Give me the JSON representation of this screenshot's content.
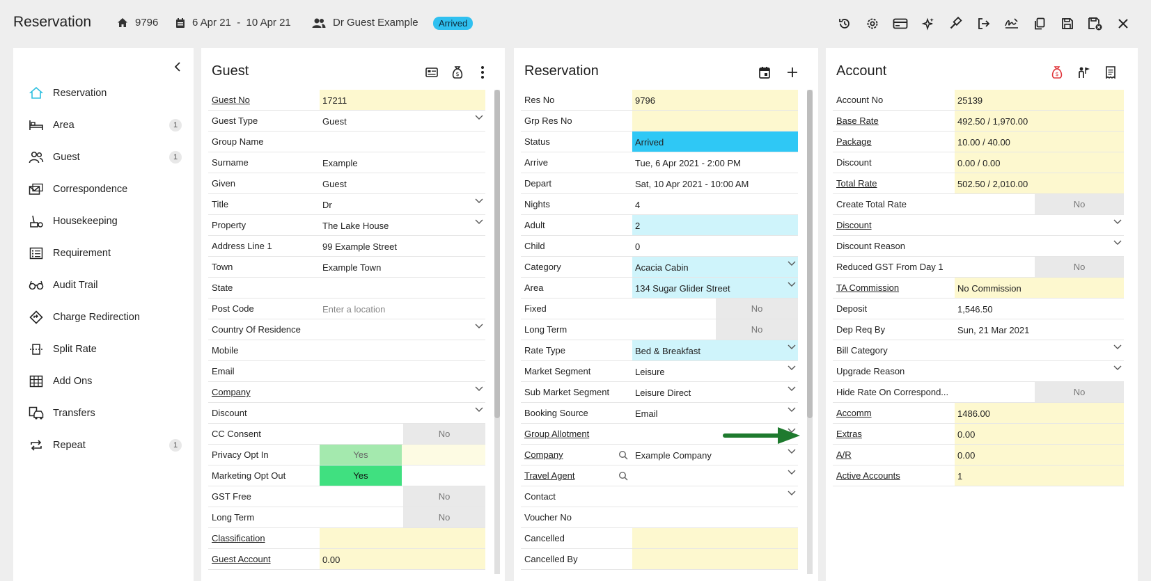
{
  "header": {
    "title": "Reservation",
    "res_no": "9796",
    "dates": "6 Apr 21  -  10 Apr 21",
    "guest": "Dr Guest Example",
    "status_badge": "Arrived"
  },
  "toolbar": {
    "icons": [
      "history-icon",
      "settings-gear-icon",
      "credit-card-icon",
      "magic-wand-icon",
      "gavel-icon",
      "check-out-icon",
      "signature-icon",
      "copy-icon",
      "save-icon",
      "save-close-icon",
      "close-icon"
    ]
  },
  "sidebar": {
    "items": [
      {
        "label": "Reservation",
        "icon": "home-icon",
        "count": ""
      },
      {
        "label": "Area",
        "icon": "bed-icon",
        "count": "1"
      },
      {
        "label": "Guest",
        "icon": "users-icon",
        "count": "1"
      },
      {
        "label": "Correspondence",
        "icon": "mail-icon",
        "count": ""
      },
      {
        "label": "Housekeeping",
        "icon": "housekeeping-icon",
        "count": ""
      },
      {
        "label": "Requirement",
        "icon": "list-icon",
        "count": ""
      },
      {
        "label": "Audit Trail",
        "icon": "glasses-icon",
        "count": ""
      },
      {
        "label": "Charge Redirection",
        "icon": "diamond-arrow-icon",
        "count": ""
      },
      {
        "label": "Split Rate",
        "icon": "split-icon",
        "count": ""
      },
      {
        "label": "Add Ons",
        "icon": "grid-icon",
        "count": ""
      },
      {
        "label": "Transfers",
        "icon": "car-icon",
        "count": ""
      },
      {
        "label": "Repeat",
        "icon": "repeat-icon",
        "count": "1"
      }
    ]
  },
  "guest_panel": {
    "title": "Guest",
    "rows": [
      {
        "label": "Guest No",
        "value": "17211",
        "link": true,
        "style": "yellow"
      },
      {
        "label": "Guest Type",
        "value": "Guest",
        "dropdown": true
      },
      {
        "label": "Group Name",
        "value": ""
      },
      {
        "label": "Surname",
        "value": "Example"
      },
      {
        "label": "Given",
        "value": "Guest"
      },
      {
        "label": "Title",
        "value": "Dr",
        "dropdown": true
      },
      {
        "label": "Property",
        "value": "The Lake House",
        "dropdown": true
      },
      {
        "label": "Address Line 1",
        "value": "99 Example Street"
      },
      {
        "label": "Town",
        "value": "Example Town"
      },
      {
        "label": "State",
        "value": ""
      },
      {
        "label": "Post Code",
        "value": "",
        "placeholder": "Enter a location"
      },
      {
        "label": "Country Of Residence",
        "value": "",
        "dropdown": true
      },
      {
        "label": "Mobile",
        "value": ""
      },
      {
        "label": "Email",
        "value": ""
      },
      {
        "label": "Company",
        "value": "",
        "link": true,
        "dropdown": true
      },
      {
        "label": "Discount",
        "value": "",
        "dropdown": true
      },
      {
        "label": "CC Consent",
        "toggle": "No"
      },
      {
        "label": "Privacy Opt In",
        "toggle": "Yes",
        "toggle_style": "lightgreen"
      },
      {
        "label": "Marketing Opt Out",
        "toggle": "Yes",
        "toggle_style": "green"
      },
      {
        "label": "GST Free",
        "toggle": "No"
      },
      {
        "label": "Long Term",
        "toggle": "No"
      },
      {
        "label": "Classification",
        "value": "",
        "link": true,
        "style": "yellow"
      },
      {
        "label": "Guest Account",
        "value": "0.00",
        "link": true,
        "style": "yellow"
      }
    ]
  },
  "reservation_panel": {
    "title": "Reservation",
    "rows": [
      {
        "label": "Res No",
        "value": "9796",
        "style": "yellow"
      },
      {
        "label": "Grp Res No",
        "value": "",
        "style": "yellow"
      },
      {
        "label": "Status",
        "value": "Arrived",
        "style": "blue"
      },
      {
        "label": "Arrive",
        "value": "Tue, 6 Apr 2021 - 2:00 PM"
      },
      {
        "label": "Depart",
        "value": "Sat, 10 Apr 2021 - 10:00 AM"
      },
      {
        "label": "Nights",
        "value": "4"
      },
      {
        "label": "Adult",
        "value": "2",
        "style": "lightblue"
      },
      {
        "label": "Child",
        "value": "0"
      },
      {
        "label": "Category",
        "value": "Acacia Cabin",
        "style": "lightblue",
        "dropdown": true
      },
      {
        "label": "Area",
        "value": "134 Sugar Glider Street",
        "style": "lightblue",
        "dropdown": true
      },
      {
        "label": "Fixed",
        "toggle": "No"
      },
      {
        "label": "Long Term",
        "toggle": "No"
      },
      {
        "label": "Rate Type",
        "value": "Bed & Breakfast",
        "style": "lightblue",
        "dropdown": true
      },
      {
        "label": "Market Segment",
        "value": "Leisure",
        "dropdown": true
      },
      {
        "label": "Sub Market Segment",
        "value": "Leisure Direct",
        "dropdown": true
      },
      {
        "label": "Booking Source",
        "value": "Email",
        "dropdown": true
      },
      {
        "label": "Group Allotment",
        "value": "",
        "link": true,
        "dropdown": true
      },
      {
        "label": "Company",
        "value": "Example Company",
        "link": true,
        "search": true,
        "dropdown": true
      },
      {
        "label": "Travel Agent",
        "value": "",
        "link": true,
        "search": true,
        "dropdown": true
      },
      {
        "label": "Contact",
        "value": "",
        "dropdown": true
      },
      {
        "label": "Voucher No",
        "value": ""
      },
      {
        "label": "Cancelled",
        "value": "",
        "style": "yellow"
      },
      {
        "label": "Cancelled By",
        "value": "",
        "style": "yellow"
      }
    ]
  },
  "account_panel": {
    "title": "Account",
    "rows": [
      {
        "label": "Account No",
        "value": "25139",
        "style": "yellow"
      },
      {
        "label": "Base Rate",
        "value": "492.50 / 1,970.00",
        "link": true,
        "style": "yellow"
      },
      {
        "label": "Package",
        "value": "10.00 / 40.00",
        "link": true,
        "style": "yellow"
      },
      {
        "label": "Discount",
        "value": "0.00 / 0.00",
        "style": "yellow"
      },
      {
        "label": "Total Rate",
        "value": "502.50 / 2,010.00",
        "link": true,
        "style": "yellow"
      },
      {
        "label": "Create Total Rate",
        "toggle": "No"
      },
      {
        "label": "Discount",
        "value": "",
        "link": true,
        "dropdown": true
      },
      {
        "label": "Discount Reason",
        "value": "",
        "dropdown": true
      },
      {
        "label": "Reduced GST From Day 1",
        "toggle": "No"
      },
      {
        "label": "TA Commission",
        "value": "No Commission",
        "link": true,
        "style": "yellow"
      },
      {
        "label": "Deposit",
        "value": "1,546.50"
      },
      {
        "label": "Dep Req By",
        "value": "Sun, 21 Mar 2021"
      },
      {
        "label": "Bill Category",
        "value": "",
        "dropdown": true
      },
      {
        "label": "Upgrade Reason",
        "value": "",
        "dropdown": true
      },
      {
        "label": "Hide Rate On Correspond...",
        "toggle": "No"
      },
      {
        "label": "Accomm",
        "value": "1486.00",
        "link": true,
        "style": "yellow"
      },
      {
        "label": "Extras",
        "value": "0.00",
        "link": true,
        "style": "yellow"
      },
      {
        "label": "A/R",
        "value": "0.00",
        "link": true,
        "style": "yellow"
      },
      {
        "label": "Active Accounts",
        "value": "1",
        "link": true,
        "style": "yellow"
      }
    ]
  },
  "colors": {
    "yellow": "#fdf8cf",
    "lightblue": "#cff4fb",
    "blue": "#2fc8f5",
    "green": "#40e080",
    "lightgreen": "#a4e9ae",
    "arrow": "#1e7a2e",
    "accent": "#2fc0f0"
  }
}
